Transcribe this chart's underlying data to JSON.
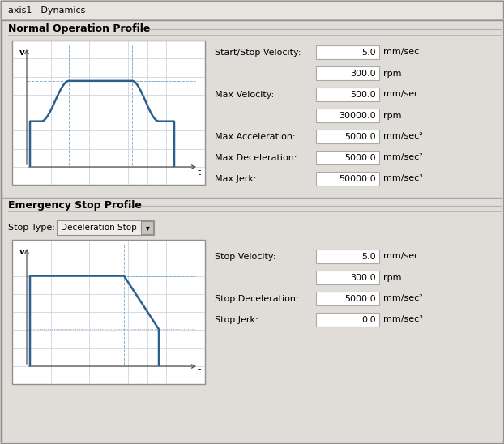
{
  "title": "axis1 - Dynamics",
  "bg_color": "#d4d0c8",
  "white": "#ffffff",
  "section1_title": "Normal Operation Profile",
  "section2_title": "Emergency Stop Profile",
  "stop_type_label": "Stop Type:",
  "stop_type_value": "Deceleration Stop",
  "normal_params": [
    [
      "Start/Stop Velocity:",
      "5.0",
      "mm/sec"
    ],
    [
      "",
      "300.0",
      "rpm"
    ],
    [
      "Max Velocity:",
      "500.0",
      "mm/sec"
    ],
    [
      "",
      "30000.0",
      "rpm"
    ],
    [
      "Max Acceleration:",
      "5000.0",
      "mm/sec²"
    ],
    [
      "Max Deceleration:",
      "5000.0",
      "mm/sec²"
    ],
    [
      "Max Jerk:",
      "50000.0",
      "mm/sec³"
    ]
  ],
  "emerg_params": [
    [
      "Stop Velocity:",
      "5.0",
      "mm/sec"
    ],
    [
      "",
      "300.0",
      "rpm"
    ],
    [
      "Stop Deceleration:",
      "5000.0",
      "mm/sec²"
    ],
    [
      "Stop Jerk:",
      "0.0",
      "mm/sec³"
    ]
  ],
  "line_color": "#2b5f8e",
  "grid_color": "#c8ccd4",
  "axis_color": "#505050",
  "dash_color": "#8ab0cc"
}
